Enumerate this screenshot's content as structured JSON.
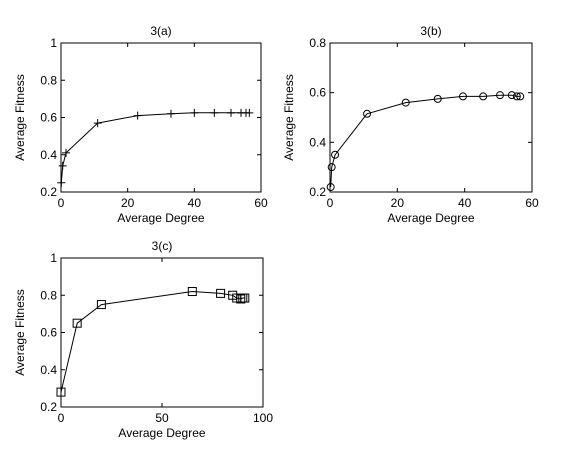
{
  "chart_data": [
    {
      "type": "line",
      "title": "3(a)",
      "xlabel": "Average Degree",
      "ylabel": "Average Fitness",
      "xlim": [
        0,
        60
      ],
      "ylim": [
        0.2,
        1
      ],
      "xticks": [
        0,
        20,
        40,
        60
      ],
      "yticks": [
        0.2,
        0.4,
        0.6,
        0.8,
        1
      ],
      "xtick_labels": [
        "0",
        "20",
        "40",
        "60"
      ],
      "ytick_labels": [
        "0.2",
        "0.4",
        "0.6",
        "0.8",
        "1"
      ],
      "marker": "plus",
      "series": [
        {
          "x": [
            0.1,
            0.5,
            1.5,
            11,
            23,
            33,
            40,
            46,
            51,
            54,
            55.5,
            56.5
          ],
          "y": [
            0.25,
            0.34,
            0.41,
            0.57,
            0.61,
            0.62,
            0.625,
            0.625,
            0.625,
            0.625,
            0.625,
            0.625
          ]
        }
      ]
    },
    {
      "type": "line",
      "title": "3(b)",
      "xlabel": "Average Degree",
      "ylabel": "Average Fitness",
      "xlim": [
        0,
        60
      ],
      "ylim": [
        0.2,
        0.8
      ],
      "xticks": [
        0,
        20,
        40,
        60
      ],
      "yticks": [
        0.2,
        0.4,
        0.6,
        0.8
      ],
      "xtick_labels": [
        "0",
        "20",
        "40",
        "60"
      ],
      "ytick_labels": [
        "0.2",
        "0.4",
        "0.6",
        "0.8"
      ],
      "marker": "circle",
      "series": [
        {
          "x": [
            0.2,
            0.5,
            1.5,
            11,
            22.5,
            32,
            39.5,
            45.5,
            50.5,
            54,
            55.5,
            56.5
          ],
          "y": [
            0.22,
            0.3,
            0.35,
            0.515,
            0.56,
            0.575,
            0.585,
            0.585,
            0.59,
            0.59,
            0.585,
            0.585
          ]
        }
      ]
    },
    {
      "type": "line",
      "title": "3(c)",
      "xlabel": "Average Degree",
      "ylabel": "Average Fitness",
      "xlim": [
        0,
        100
      ],
      "ylim": [
        0.2,
        1
      ],
      "xticks": [
        0,
        50,
        100
      ],
      "yticks": [
        0.2,
        0.4,
        0.6,
        0.8,
        1
      ],
      "xtick_labels": [
        "0",
        "50",
        "100"
      ],
      "ytick_labels": [
        "0.2",
        "0.4",
        "0.6",
        "0.8",
        "1"
      ],
      "marker": "square",
      "series": [
        {
          "x": [
            0,
            8,
            20,
            65,
            79,
            85,
            87,
            89,
            90,
            91
          ],
          "y": [
            0.28,
            0.65,
            0.75,
            0.82,
            0.81,
            0.8,
            0.785,
            0.78,
            0.785,
            0.785
          ]
        }
      ]
    }
  ]
}
